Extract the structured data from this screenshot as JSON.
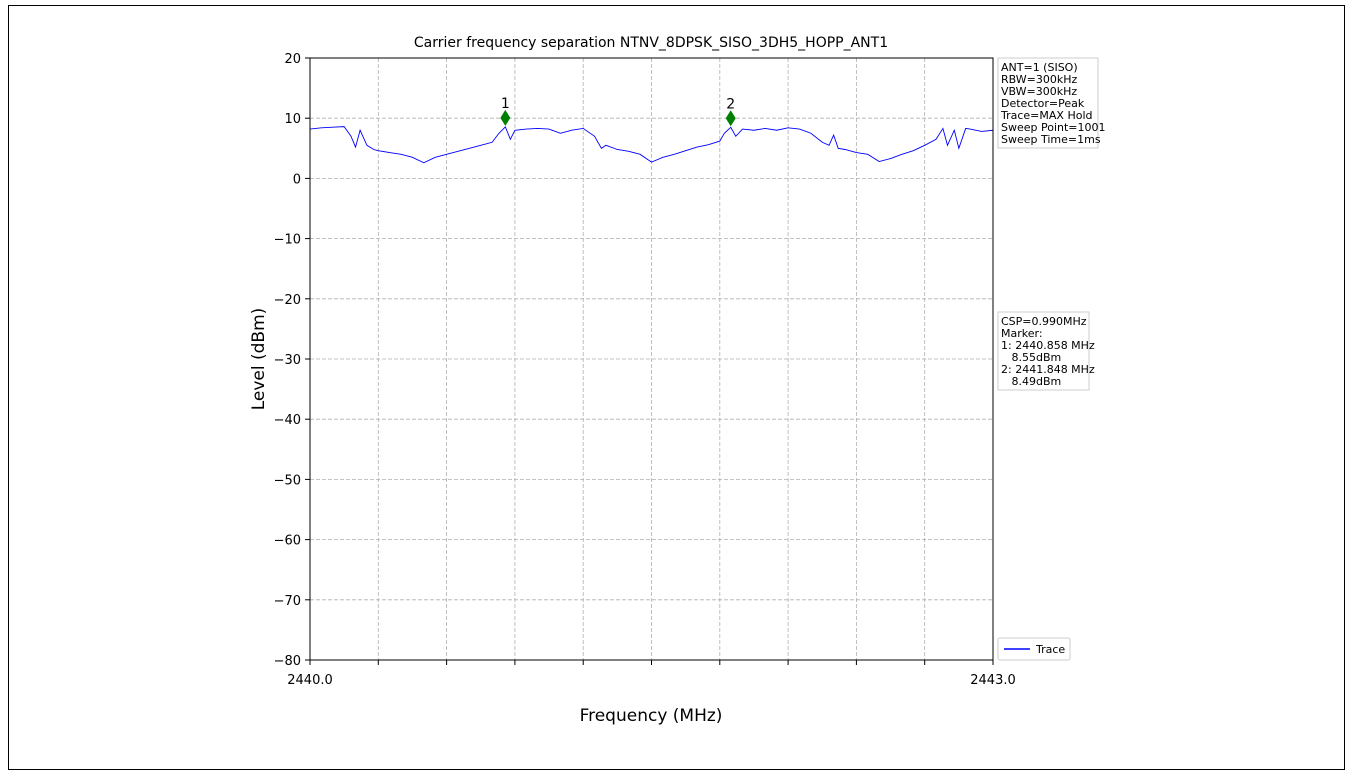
{
  "chart_data": {
    "type": "line",
    "title": "Carrier frequency separation NTNV_8DPSK_SISO_3DH5_HOPP_ANT1",
    "x_label": "Frequency (MHz)",
    "y_label": "Level (dBm)",
    "xlim": [
      2440.0,
      2443.0
    ],
    "ylim": [
      -80,
      20
    ],
    "xticks": [
      {
        "value": 2440.0,
        "label": "2440.0"
      },
      {
        "value": 2443.0,
        "label": "2443.0"
      }
    ],
    "xminor_ticks": [
      2440.3,
      2440.6,
      2440.9,
      2441.2,
      2441.5,
      2441.8,
      2442.1,
      2442.4,
      2442.7
    ],
    "yticks": [
      {
        "value": -80,
        "label": "−80"
      },
      {
        "value": -70,
        "label": "−70"
      },
      {
        "value": -60,
        "label": "−60"
      },
      {
        "value": -50,
        "label": "−50"
      },
      {
        "value": -40,
        "label": "−40"
      },
      {
        "value": -30,
        "label": "−30"
      },
      {
        "value": -20,
        "label": "−20"
      },
      {
        "value": -10,
        "label": "−10"
      },
      0,
      10,
      20
    ],
    "grid": true,
    "series": [
      {
        "name": "Trace",
        "color": "#0000ff",
        "x": [
          2440.0,
          2440.05,
          2440.1,
          2440.15,
          2440.18,
          2440.2,
          2440.22,
          2440.25,
          2440.28,
          2440.3,
          2440.35,
          2440.4,
          2440.45,
          2440.5,
          2440.55,
          2440.6,
          2440.65,
          2440.7,
          2440.75,
          2440.8,
          2440.83,
          2440.858,
          2440.88,
          2440.9,
          2440.95,
          2441.0,
          2441.05,
          2441.1,
          2441.15,
          2441.2,
          2441.25,
          2441.28,
          2441.3,
          2441.35,
          2441.4,
          2441.45,
          2441.5,
          2441.55,
          2441.6,
          2441.65,
          2441.7,
          2441.75,
          2441.8,
          2441.82,
          2441.848,
          2441.87,
          2441.9,
          2441.95,
          2442.0,
          2442.05,
          2442.1,
          2442.15,
          2442.2,
          2442.25,
          2442.28,
          2442.3,
          2442.32,
          2442.35,
          2442.4,
          2442.45,
          2442.5,
          2442.55,
          2442.6,
          2442.65,
          2442.7,
          2442.75,
          2442.78,
          2442.8,
          2442.83,
          2442.85,
          2442.88,
          2442.9,
          2442.95,
          2443.0
        ],
        "values": [
          8.2,
          8.4,
          8.5,
          8.6,
          7.0,
          5.2,
          8.0,
          5.5,
          4.8,
          4.6,
          4.3,
          4.0,
          3.5,
          2.6,
          3.5,
          4.0,
          4.5,
          5.0,
          5.5,
          6.0,
          7.5,
          8.55,
          6.5,
          8.0,
          8.2,
          8.3,
          8.2,
          7.5,
          8.0,
          8.3,
          7.0,
          5.0,
          5.5,
          4.8,
          4.5,
          4.0,
          2.7,
          3.5,
          4.0,
          4.6,
          5.2,
          5.6,
          6.2,
          7.5,
          8.49,
          7.0,
          8.2,
          8.0,
          8.3,
          8.0,
          8.4,
          8.2,
          7.5,
          6.0,
          5.5,
          7.2,
          5.0,
          4.8,
          4.3,
          4.0,
          2.8,
          3.3,
          4.0,
          4.6,
          5.5,
          6.5,
          8.3,
          5.5,
          8.0,
          5.0,
          8.3,
          8.2,
          7.8,
          8.0
        ]
      }
    ],
    "markers": [
      {
        "label": "1",
        "x": 2440.858,
        "value": 8.55,
        "color": "#008000"
      },
      {
        "label": "2",
        "x": 2441.848,
        "value": 8.49,
        "color": "#008000"
      }
    ],
    "info_box": [
      "ANT=1 (SISO)",
      "RBW=300kHz",
      "VBW=300kHz",
      "Detector=Peak",
      "Trace=MAX Hold",
      "Sweep Point=1001",
      "Sweep Time=1ms"
    ],
    "result_box": [
      "CSP=0.990MHz",
      "Marker:",
      "1: 2440.858 MHz",
      "   8.55dBm",
      "2: 2441.848 MHz",
      "   8.49dBm"
    ],
    "legend_position": "lower-right"
  }
}
